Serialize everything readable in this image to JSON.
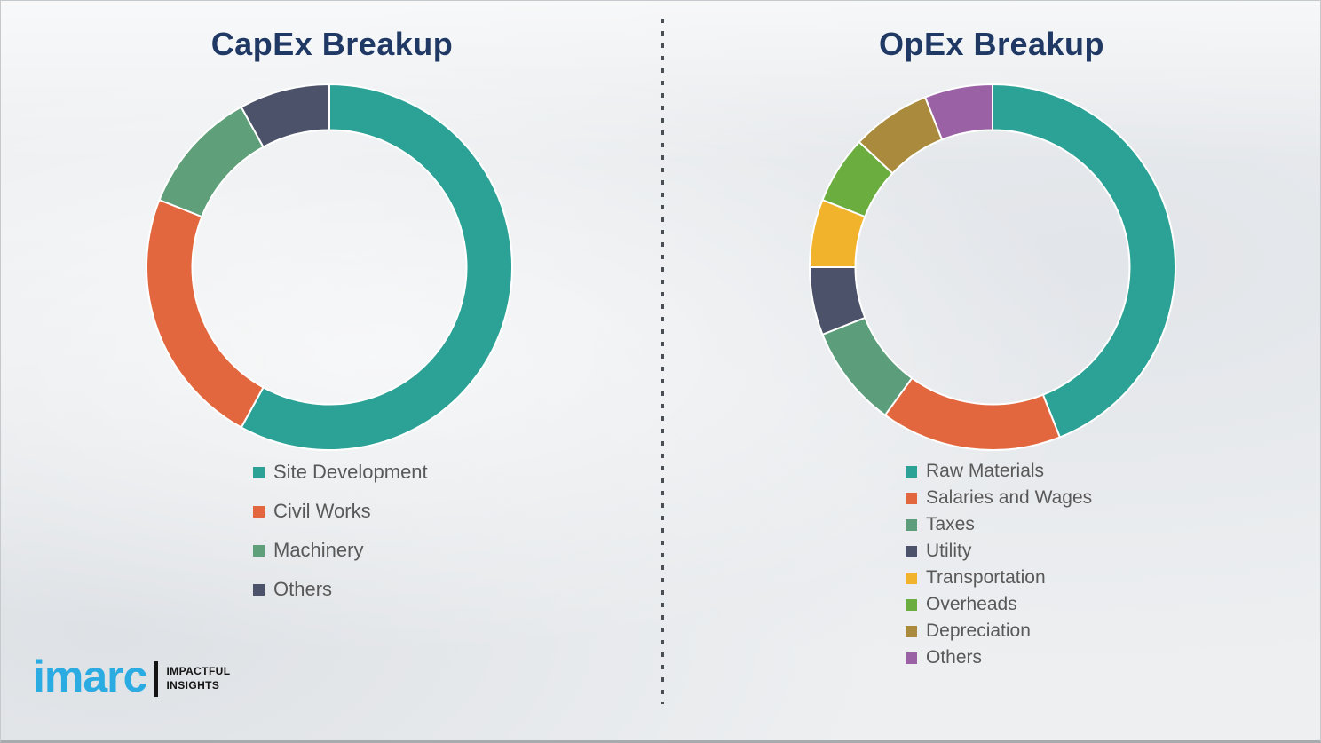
{
  "chart_data": [
    {
      "type": "pie",
      "subtype": "donut",
      "title": "CapEx Breakup",
      "categories": [
        "Site Development",
        "Civil Works",
        "Machinery",
        "Others"
      ],
      "values": [
        58,
        23,
        11,
        8
      ],
      "values_note": "percent share estimated from arc angles; no numeric labels shown in image",
      "colors": [
        "#2ba295",
        "#e2673f",
        "#5fa07a",
        "#4c5269"
      ],
      "start_angle": 0,
      "direction": "clockwise",
      "donut_inner_ratio": 0.75,
      "legend_position": "below-chart-left",
      "separator_stroke": "#ffffff"
    },
    {
      "type": "pie",
      "subtype": "donut",
      "title": "OpEx Breakup",
      "categories": [
        "Raw Materials",
        "Salaries and Wages",
        "Taxes",
        "Utility",
        "Transportation",
        "Overheads",
        "Depreciation",
        "Others"
      ],
      "values": [
        44,
        16,
        9,
        6,
        6,
        6,
        7,
        6
      ],
      "values_note": "percent share estimated from arc angles; no numeric labels shown in image",
      "colors": [
        "#2ba295",
        "#e2673f",
        "#5c9e7c",
        "#4c5269",
        "#f2b32c",
        "#6bae3f",
        "#aa8b3d",
        "#9b61a5"
      ],
      "start_angle": 0,
      "direction": "clockwise",
      "donut_inner_ratio": 0.75,
      "legend_position": "below-chart-left",
      "separator_stroke": "#ffffff"
    }
  ],
  "divider": {
    "style": "dashed-vertical",
    "color": "#4a4f55"
  },
  "logo": {
    "brand": "imarc",
    "tagline": [
      "IMPACTFUL",
      "INSIGHTS"
    ],
    "brand_color": "#2aabe2",
    "bar_color": "#141414"
  },
  "theme": {
    "title_color": "#1f3864",
    "legend_text_color": "#595959",
    "background": "#edeff1"
  }
}
